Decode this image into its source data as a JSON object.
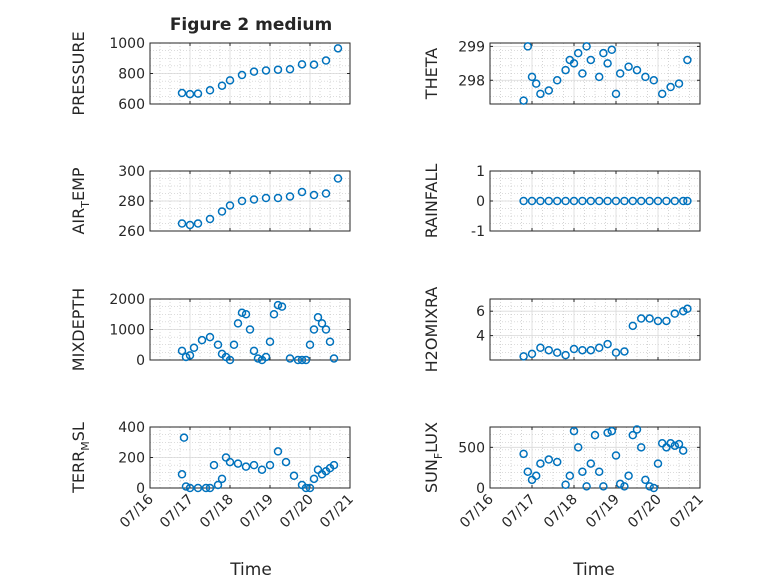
{
  "figure": {
    "title": "Figure 2 medium",
    "xlabel": "Time"
  },
  "x_ticks": [
    "07/16",
    "07/17",
    "07/18",
    "07/19",
    "07/20",
    "07/21"
  ],
  "colors": {
    "marker": "#0072bd",
    "axis": "#262626",
    "grid": "#b8b8b8",
    "background": "#ffffff"
  },
  "chart_data": [
    {
      "type": "scatter",
      "ylabel": "PRESSURE",
      "ylabel_sub": "",
      "xlim": [
        "07/16",
        "07/21"
      ],
      "ylim": [
        600,
        1000
      ],
      "yticks": [
        600,
        800,
        1000
      ],
      "x": [
        16.8,
        17.0,
        17.2,
        17.5,
        17.8,
        18.0,
        18.3,
        18.6,
        18.9,
        19.2,
        19.5,
        19.8,
        20.1,
        20.4,
        20.7
      ],
      "y": [
        672,
        665,
        668,
        690,
        720,
        755,
        790,
        812,
        820,
        825,
        828,
        860,
        858,
        885,
        965
      ]
    },
    {
      "type": "scatter",
      "ylabel": "THETA",
      "ylabel_sub": "",
      "xlim": [
        "07/16",
        "07/21"
      ],
      "ylim": [
        297.3,
        299.1
      ],
      "yticks": [
        298,
        299
      ],
      "x": [
        16.8,
        16.9,
        17.0,
        17.1,
        17.2,
        17.4,
        17.6,
        17.8,
        17.9,
        18.0,
        18.1,
        18.2,
        18.3,
        18.4,
        18.6,
        18.7,
        18.8,
        18.9,
        19.0,
        19.1,
        19.3,
        19.5,
        19.7,
        19.9,
        20.1,
        20.3,
        20.5,
        20.7
      ],
      "y": [
        297.4,
        299.0,
        298.1,
        297.9,
        297.6,
        297.7,
        298.0,
        298.3,
        298.6,
        298.5,
        298.8,
        298.2,
        299.0,
        298.6,
        298.1,
        298.8,
        298.5,
        298.9,
        297.6,
        298.2,
        298.4,
        298.3,
        298.1,
        298.0,
        297.6,
        297.8,
        297.9,
        298.6
      ]
    },
    {
      "type": "scatter",
      "ylabel": "AIR",
      "ylabel_sub": "T",
      "ylabel_after": "EMP",
      "xlim": [
        "07/16",
        "07/21"
      ],
      "ylim": [
        260,
        300
      ],
      "yticks": [
        260,
        280,
        300
      ],
      "x": [
        16.8,
        17.0,
        17.2,
        17.5,
        17.8,
        18.0,
        18.3,
        18.6,
        18.9,
        19.2,
        19.5,
        19.8,
        20.1,
        20.4,
        20.7
      ],
      "y": [
        265,
        264,
        265,
        268,
        273,
        277,
        280,
        281,
        282,
        282,
        283,
        286,
        284,
        285,
        295
      ]
    },
    {
      "type": "scatter",
      "ylabel": "RAINFALL",
      "ylabel_sub": "",
      "xlim": [
        "07/16",
        "07/21"
      ],
      "ylim": [
        -1,
        1
      ],
      "yticks": [
        -1,
        0,
        1
      ],
      "x": [
        16.8,
        17.0,
        17.2,
        17.4,
        17.6,
        17.8,
        18.0,
        18.2,
        18.4,
        18.6,
        18.8,
        19.0,
        19.2,
        19.4,
        19.6,
        19.8,
        20.0,
        20.2,
        20.4,
        20.6,
        20.7
      ],
      "y": [
        0,
        0,
        0,
        0,
        0,
        0,
        0,
        0,
        0,
        0,
        0,
        0,
        0,
        0,
        0,
        0,
        0,
        0,
        0,
        0,
        0
      ]
    },
    {
      "type": "scatter",
      "ylabel": "MIXDEPTH",
      "ylabel_sub": "",
      "xlim": [
        "07/16",
        "07/21"
      ],
      "ylim": [
        0,
        2000
      ],
      "yticks": [
        0,
        1000,
        2000
      ],
      "x": [
        16.8,
        16.9,
        17.0,
        17.1,
        17.3,
        17.5,
        17.7,
        17.8,
        17.9,
        18.0,
        18.1,
        18.2,
        18.3,
        18.4,
        18.5,
        18.6,
        18.7,
        18.8,
        18.9,
        19.0,
        19.1,
        19.2,
        19.3,
        19.5,
        19.7,
        19.8,
        19.9,
        20.0,
        20.1,
        20.2,
        20.3,
        20.4,
        20.5,
        20.6
      ],
      "y": [
        300,
        100,
        150,
        400,
        650,
        750,
        500,
        200,
        100,
        0,
        500,
        1200,
        1550,
        1500,
        1000,
        300,
        50,
        0,
        100,
        600,
        1500,
        1800,
        1750,
        50,
        0,
        0,
        0,
        500,
        1000,
        1400,
        1200,
        1000,
        600,
        50
      ]
    },
    {
      "type": "scatter",
      "ylabel": "H2OMIXRA",
      "ylabel_sub": "",
      "xlim": [
        "07/16",
        "07/21"
      ],
      "ylim": [
        2,
        7
      ],
      "yticks": [
        4,
        6
      ],
      "x": [
        16.8,
        17.0,
        17.2,
        17.4,
        17.6,
        17.8,
        18.0,
        18.2,
        18.4,
        18.6,
        18.8,
        19.0,
        19.2,
        19.4,
        19.6,
        19.8,
        20.0,
        20.2,
        20.4,
        20.6,
        20.7
      ],
      "y": [
        2.3,
        2.5,
        3.0,
        2.8,
        2.6,
        2.4,
        2.9,
        2.8,
        2.8,
        3.0,
        3.3,
        2.6,
        2.7,
        4.8,
        5.4,
        5.4,
        5.2,
        5.2,
        5.8,
        6.0,
        6.2
      ]
    },
    {
      "type": "scatter",
      "ylabel": "TERR",
      "ylabel_sub": "M",
      "ylabel_after": "SL",
      "xlim": [
        "07/16",
        "07/21"
      ],
      "ylim": [
        0,
        400
      ],
      "yticks": [
        0,
        200,
        400
      ],
      "x": [
        16.8,
        16.85,
        16.9,
        17.0,
        17.2,
        17.4,
        17.5,
        17.6,
        17.7,
        17.8,
        17.9,
        18.0,
        18.2,
        18.4,
        18.6,
        18.8,
        19.0,
        19.2,
        19.4,
        19.6,
        19.8,
        19.9,
        20.0,
        20.1,
        20.2,
        20.3,
        20.4,
        20.5,
        20.6
      ],
      "y": [
        90,
        330,
        10,
        0,
        0,
        0,
        0,
        150,
        20,
        60,
        200,
        170,
        160,
        140,
        150,
        120,
        150,
        240,
        170,
        80,
        20,
        0,
        0,
        60,
        120,
        90,
        110,
        130,
        150
      ]
    },
    {
      "type": "scatter",
      "ylabel": "SUN",
      "ylabel_sub": "F",
      "ylabel_after": "LUX",
      "xlim": [
        "07/16",
        "07/21"
      ],
      "ylim": [
        0,
        750
      ],
      "yticks": [
        0,
        500
      ],
      "x": [
        16.8,
        16.9,
        17.0,
        17.1,
        17.2,
        17.4,
        17.6,
        17.8,
        17.9,
        18.0,
        18.1,
        18.2,
        18.3,
        18.4,
        18.5,
        18.6,
        18.7,
        18.8,
        18.9,
        19.0,
        19.1,
        19.2,
        19.3,
        19.4,
        19.5,
        19.6,
        19.7,
        19.8,
        19.9,
        20.0,
        20.1,
        20.2,
        20.3,
        20.4,
        20.5,
        20.6
      ],
      "y": [
        420,
        200,
        100,
        150,
        300,
        350,
        320,
        40,
        150,
        700,
        500,
        200,
        20,
        300,
        650,
        200,
        20,
        680,
        700,
        400,
        50,
        20,
        150,
        650,
        720,
        500,
        100,
        20,
        0,
        300,
        550,
        500,
        550,
        520,
        540,
        460
      ]
    }
  ]
}
